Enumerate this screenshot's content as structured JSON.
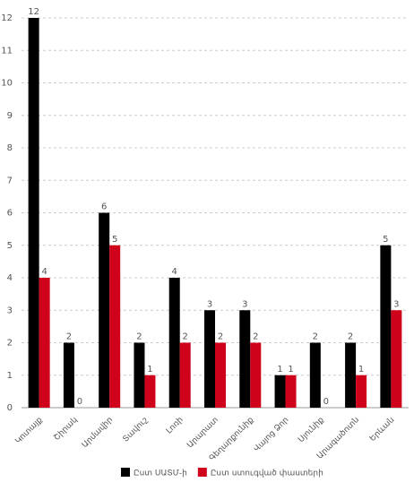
{
  "chart_data": {
    "type": "bar",
    "categories": [
      "Կոտայք",
      "Շիրակ",
      "Արմավիր",
      "Տավուշ",
      "Լոռի",
      "Արարատ",
      "Գեղարքունիք",
      "Վայոց Ձոր",
      "Սյունիք",
      "Արագածոտն",
      "Երևան"
    ],
    "series": [
      {
        "name": "Ըստ ՍԱՏՄ-ի",
        "color": "#000000",
        "values": [
          12,
          2,
          6,
          2,
          4,
          3,
          3,
          1,
          2,
          2,
          5
        ]
      },
      {
        "name": "Ըստ ստուգված փաստերի",
        "color": "#d0021b",
        "values": [
          4,
          0,
          5,
          1,
          2,
          2,
          2,
          1,
          0,
          1,
          3
        ]
      }
    ],
    "ylim": [
      0,
      12
    ],
    "yticks": [
      0,
      1,
      2,
      3,
      4,
      5,
      6,
      7,
      8,
      9,
      10,
      11,
      12
    ],
    "grid": true,
    "legend": "bottom"
  }
}
